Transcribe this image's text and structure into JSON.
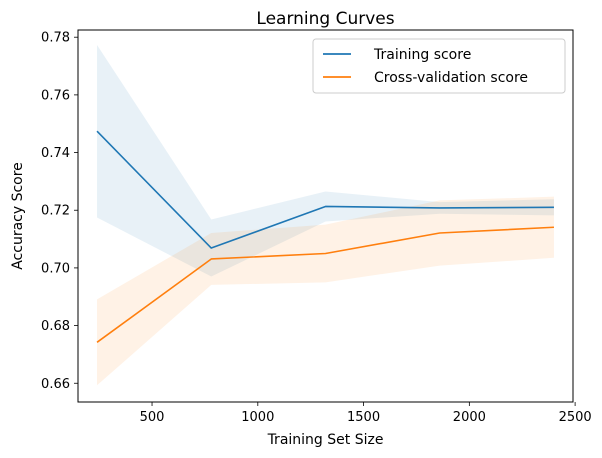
{
  "chart_data": {
    "type": "line",
    "title": "Learning Curves",
    "xlabel": "Training Set Size",
    "ylabel": "Accuracy Score",
    "x": [
      240,
      780,
      1320,
      1860,
      2400
    ],
    "xlim": [
      150,
      2490
    ],
    "ylim": [
      0.6535,
      0.7825
    ],
    "xticks": [
      500,
      1000,
      1500,
      2000,
      2500
    ],
    "yticks": [
      0.66,
      0.68,
      0.7,
      0.72,
      0.74,
      0.76,
      0.78
    ],
    "legend_position": "top-right",
    "grid": false,
    "series": [
      {
        "name": "Training score",
        "color": "#1f77b4",
        "values": [
          0.7474,
          0.7069,
          0.7213,
          0.7208,
          0.721
        ],
        "band_low": [
          0.7175,
          0.697,
          0.7161,
          0.7188,
          0.7182
        ],
        "band_high": [
          0.7773,
          0.7168,
          0.7265,
          0.7228,
          0.7238
        ]
      },
      {
        "name": "Cross-validation score",
        "color": "#ff7f0e",
        "values": [
          0.6742,
          0.7031,
          0.705,
          0.7121,
          0.7141
        ],
        "band_low": [
          0.6593,
          0.6941,
          0.695,
          0.7008,
          0.7035
        ],
        "band_high": [
          0.6891,
          0.7121,
          0.715,
          0.7234,
          0.7247
        ]
      }
    ]
  }
}
